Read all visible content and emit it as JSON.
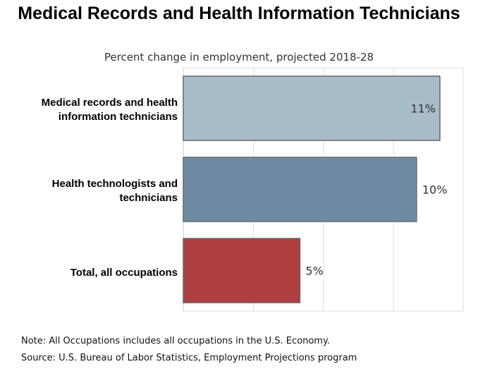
{
  "chart_data": {
    "type": "bar",
    "orientation": "horizontal",
    "title": "Medical Records and Health Information Technicians",
    "subtitle": "Percent change in employment, projected 2018-28",
    "categories": [
      "Medical records and health information technicians",
      "Health technologists and technicians",
      "Total, all occupations"
    ],
    "values": [
      11,
      10,
      5
    ],
    "value_labels": [
      "11%",
      "10%",
      "5%"
    ],
    "colors": [
      "#a9bcc9",
      "#6e8ba3",
      "#b03f42"
    ],
    "xlim": [
      0,
      12
    ],
    "gridlines": [
      0,
      3,
      6,
      9
    ],
    "grid": true,
    "xlabel": "",
    "ylabel": ""
  },
  "notes": {
    "note": "Note: All Occupations includes all occupations in the U.S. Economy.",
    "source": "Source: U.S. Bureau of Labor Statistics, Employment Projections program"
  }
}
